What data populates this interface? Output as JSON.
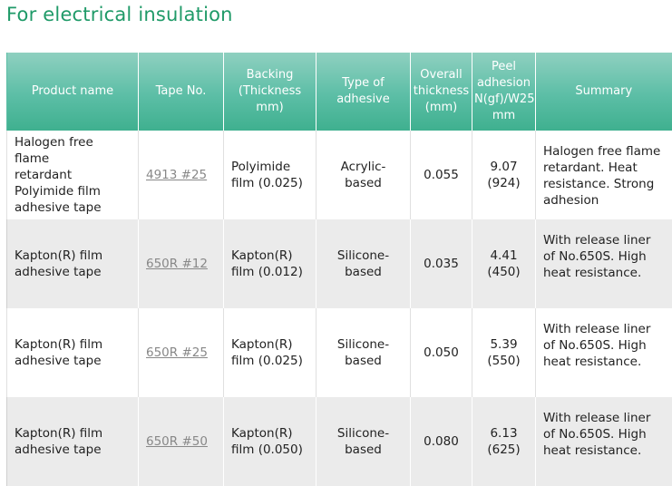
{
  "page": {
    "title": "For electrical insulation"
  },
  "table": {
    "headers": [
      "Product name",
      "Tape No.",
      "Backing\n(Thickness\nmm)",
      "Type of\nadhesive",
      "Overall\nthickness\n(mm)",
      "Peel\nadhesion\nN(gf)/W25\nmm",
      "Summary"
    ],
    "rows": [
      {
        "product": "Halogen free flame\nretardant\nPolyimide film\nadhesive tape",
        "tape": "4913 #25",
        "backing": "Polyimide\nfilm (0.025)",
        "adhesive": "Acrylic-\nbased",
        "thickness": "0.055",
        "peel": "9.07\n(924)",
        "summary": "Halogen free flame\nretardant. Heat\nresistance. Strong\nadhesion"
      },
      {
        "product": "Kapton(R) film\nadhesive tape",
        "tape": "650R #12",
        "backing": "Kapton(R)\nfilm (0.012)",
        "adhesive": "Silicone-\nbased",
        "thickness": "0.035",
        "peel": "4.41\n(450)",
        "summary": "With release liner\nof No.650S. High\nheat resistance."
      },
      {
        "product": "Kapton(R) film\nadhesive tape",
        "tape": "650R #25",
        "backing": "Kapton(R)\nfilm (0.025)",
        "adhesive": "Silicone-\nbased",
        "thickness": "0.050",
        "peel": "5.39\n(550)",
        "summary": "With release liner\nof No.650S. High\nheat resistance."
      },
      {
        "product": "Kapton(R) film\nadhesive tape",
        "tape": "650R #50",
        "backing": "Kapton(R)\nfilm (0.050)",
        "adhesive": "Silicone-\nbased",
        "thickness": "0.080",
        "peel": "6.13\n(625)",
        "summary": "With release liner\nof No.650S. High\nheat resistance."
      }
    ]
  }
}
